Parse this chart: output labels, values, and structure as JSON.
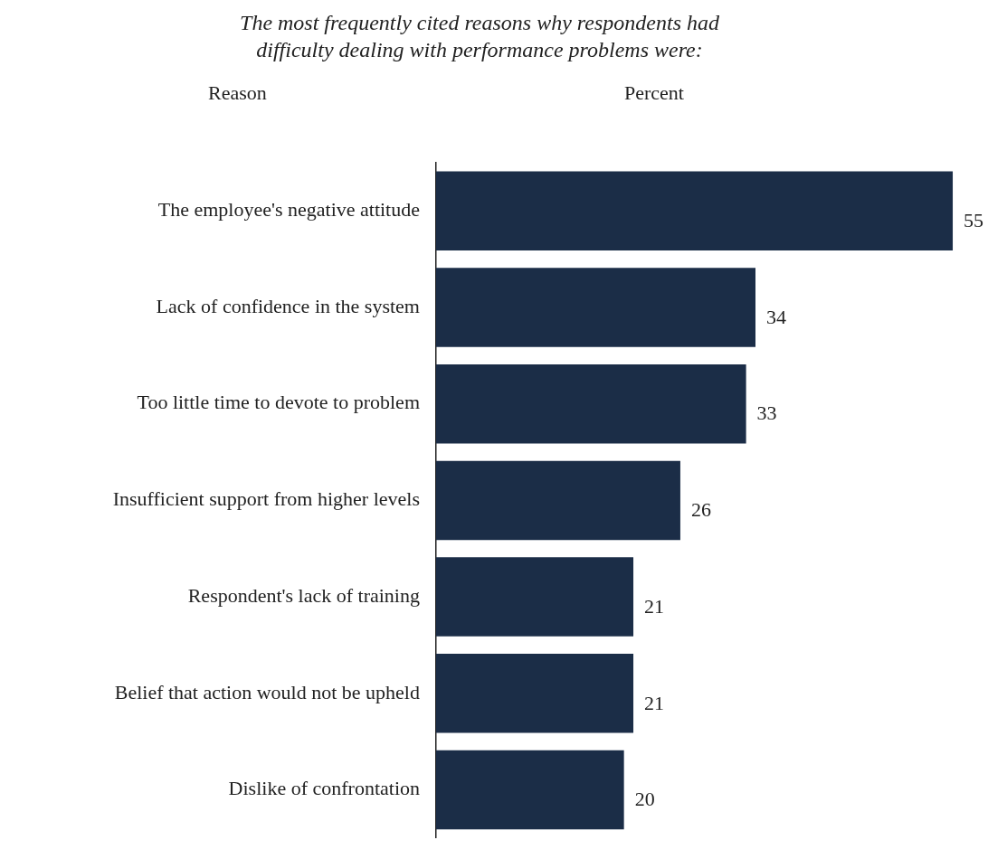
{
  "chart_data": {
    "type": "bar",
    "orientation": "horizontal",
    "title": "The most frequently cited reasons why respondents had difficulty dealing with performance problems were:",
    "ylabel": "Reason",
    "xlabel": "Percent",
    "categories": [
      "The employee's negative attitude",
      "Lack of confidence in the system",
      "Too little time to devote to problem",
      "Insufficient support from higher levels",
      "Respondent's lack of training",
      "Belief that action would not be upheld",
      "Dislike of confrontation"
    ],
    "values": [
      55,
      34,
      33,
      26,
      21,
      21,
      20
    ],
    "color": "#1b2d47",
    "data_labels": true,
    "legend": false,
    "tick_labels": "y"
  }
}
